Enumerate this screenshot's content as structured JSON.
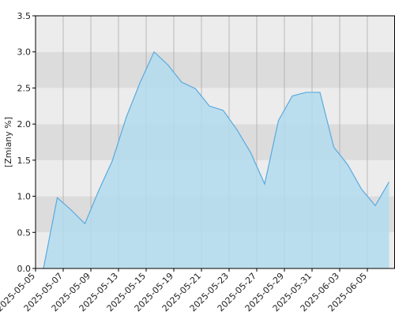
{
  "chart_data": {
    "type": "area",
    "y_label": "[Zmiany %]",
    "x_tick_labels": [
      "2025-05-05",
      "2025-05-07",
      "2025-05-09",
      "2025-05-13",
      "2025-05-15",
      "2025-05-19",
      "2025-05-21",
      "2025-05-23",
      "2025-05-27",
      "2025-05-29",
      "2025-05-31",
      "2025-06-03",
      "2025-06-05"
    ],
    "values": [
      0,
      0.98,
      0.81,
      0.62,
      1.08,
      1.5,
      2.1,
      2.58,
      3.0,
      2.82,
      2.58,
      2.49,
      2.25,
      2.19,
      1.92,
      1.6,
      1.17,
      2.05,
      2.39,
      2.44,
      2.44,
      1.68,
      1.44,
      1.1,
      0.87,
      1.2
    ],
    "color": "#5aaadf",
    "fill": "#b3dcee",
    "ylim": [
      0,
      3.5
    ],
    "yticks": [
      {
        "value": 0,
        "label": "0.0"
      },
      0.5,
      {
        "value": 1,
        "label": "1.0"
      },
      1.5,
      {
        "value": 2,
        "label": "2.0"
      },
      2.5,
      {
        "value": 3,
        "label": "3.0"
      },
      3.5
    ],
    "grid": true
  }
}
